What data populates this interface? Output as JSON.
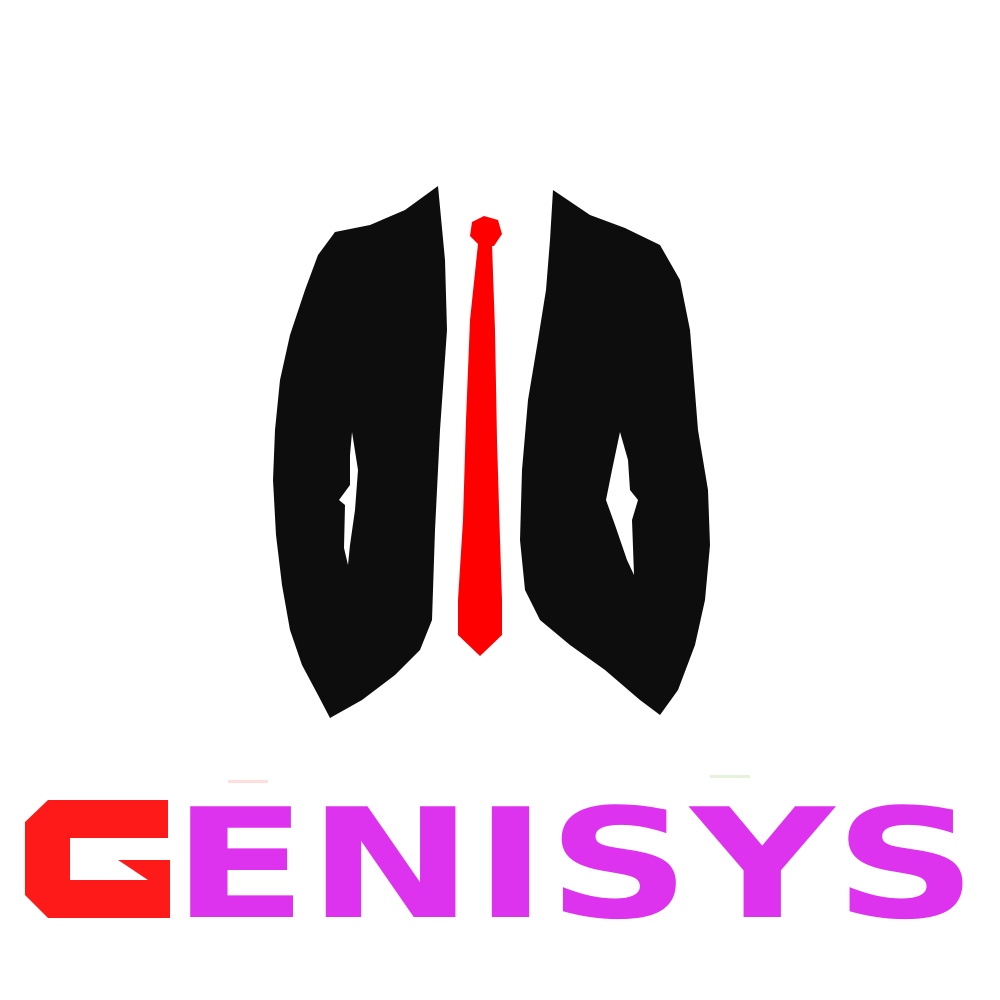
{
  "logo": {
    "wordmark": "GENISYS",
    "wordmark_first_letter": "G",
    "wordmark_rest": "ENISYS",
    "icon": "suit-jacket-with-tie-icon"
  },
  "colors": {
    "background": "#ffffff",
    "jacket": "#0d0d0d",
    "tie": "#ff0000",
    "letter_g": "#ff1a1a",
    "letters_rest": "#dd33ee"
  }
}
